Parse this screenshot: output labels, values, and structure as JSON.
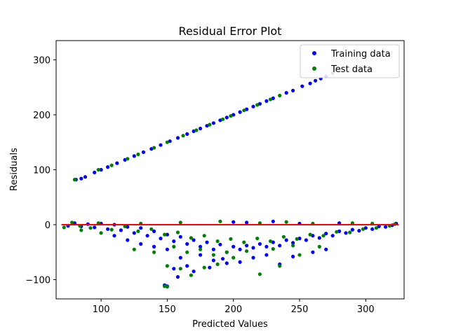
{
  "chart_data": {
    "type": "scatter",
    "title": "Residual Error Plot",
    "xlabel": "Predicted Values",
    "ylabel": "Residuals",
    "xlim": [
      66,
      329
    ],
    "ylim": [
      -135,
      335
    ],
    "xticks": [
      {
        "value": 100,
        "label": "100"
      },
      {
        "value": 150,
        "label": "150"
      },
      {
        "value": 200,
        "label": "200"
      },
      {
        "value": 250,
        "label": "250"
      },
      {
        "value": 300,
        "label": "300"
      }
    ],
    "yticks": [
      {
        "value": -100,
        "label": "−100"
      },
      {
        "value": 0,
        "label": "0"
      },
      {
        "value": 100,
        "label": "100"
      },
      {
        "value": 200,
        "label": "200"
      },
      {
        "value": 300,
        "label": "300"
      }
    ],
    "legend_position": "top-right",
    "grid": false,
    "reference_line": {
      "y": 0,
      "x_range": [
        70,
        325
      ],
      "color": "#ff0000"
    },
    "series": [
      {
        "name": "Training data",
        "color": "#0000ff",
        "points": [
          [
            81,
            82
          ],
          [
            85,
            84
          ],
          [
            88,
            87
          ],
          [
            95,
            95
          ],
          [
            100,
            100
          ],
          [
            105,
            105
          ],
          [
            112,
            112
          ],
          [
            118,
            118
          ],
          [
            125,
            125
          ],
          [
            132,
            132
          ],
          [
            138,
            138
          ],
          [
            145,
            145
          ],
          [
            152,
            152
          ],
          [
            158,
            158
          ],
          [
            165,
            165
          ],
          [
            170,
            170
          ],
          [
            175,
            175
          ],
          [
            180,
            180
          ],
          [
            185,
            185
          ],
          [
            190,
            190
          ],
          [
            195,
            195
          ],
          [
            200,
            200
          ],
          [
            205,
            205
          ],
          [
            210,
            210
          ],
          [
            215,
            215
          ],
          [
            220,
            220
          ],
          [
            225,
            225
          ],
          [
            230,
            230
          ],
          [
            240,
            240
          ],
          [
            245,
            244
          ],
          [
            252,
            252
          ],
          [
            258,
            257
          ],
          [
            262,
            262
          ],
          [
            266,
            266
          ],
          [
            270,
            270
          ],
          [
            75,
            -2
          ],
          [
            80,
            3
          ],
          [
            85,
            -3
          ],
          [
            90,
            1
          ],
          [
            95,
            -5
          ],
          [
            100,
            2
          ],
          [
            105,
            -8
          ],
          [
            110,
            0
          ],
          [
            115,
            -10
          ],
          [
            120,
            -4
          ],
          [
            125,
            -15
          ],
          [
            130,
            -6
          ],
          [
            135,
            -20
          ],
          [
            140,
            -12
          ],
          [
            145,
            -25
          ],
          [
            150,
            -18
          ],
          [
            155,
            -30
          ],
          [
            160,
            -22
          ],
          [
            165,
            -35
          ],
          [
            170,
            -28
          ],
          [
            175,
            -40
          ],
          [
            180,
            -32
          ],
          [
            185,
            -45
          ],
          [
            190,
            -36
          ],
          [
            195,
            -50
          ],
          [
            200,
            -40
          ],
          [
            205,
            -45
          ],
          [
            210,
            -38
          ],
          [
            215,
            -42
          ],
          [
            220,
            -35
          ],
          [
            225,
            -40
          ],
          [
            230,
            -32
          ],
          [
            235,
            -38
          ],
          [
            240,
            -28
          ],
          [
            245,
            -33
          ],
          [
            250,
            -25
          ],
          [
            255,
            -28
          ],
          [
            260,
            -20
          ],
          [
            265,
            -24
          ],
          [
            270,
            -16
          ],
          [
            275,
            -20
          ],
          [
            280,
            -12
          ],
          [
            285,
            -15
          ],
          [
            290,
            -9
          ],
          [
            295,
            -11
          ],
          [
            300,
            -6
          ],
          [
            305,
            -8
          ],
          [
            310,
            -3
          ],
          [
            315,
            -4
          ],
          [
            320,
            -1
          ],
          [
            323,
            2
          ],
          [
            160,
            -60
          ],
          [
            165,
            -75
          ],
          [
            175,
            -55
          ],
          [
            185,
            -65
          ],
          [
            195,
            -70
          ],
          [
            205,
            -68
          ],
          [
            215,
            -60
          ],
          [
            225,
            -55
          ],
          [
            235,
            -72
          ],
          [
            155,
            -80
          ],
          [
            158,
            -95
          ],
          [
            150,
            -112
          ],
          [
            148,
            -110
          ],
          [
            170,
            -85
          ],
          [
            182,
            -78
          ],
          [
            192,
            -62
          ],
          [
            245,
            -58
          ],
          [
            260,
            -50
          ],
          [
            270,
            -45
          ],
          [
            110,
            -20
          ],
          [
            120,
            -28
          ],
          [
            130,
            -35
          ],
          [
            140,
            -40
          ],
          [
            150,
            -45
          ],
          [
            200,
            5
          ],
          [
            210,
            4
          ],
          [
            230,
            6
          ],
          [
            250,
            2
          ],
          [
            280,
            3
          ]
        ]
      },
      {
        "name": "Test data",
        "color": "#008000",
        "points": [
          [
            80,
            82
          ],
          [
            98,
            100
          ],
          [
            108,
            108
          ],
          [
            120,
            120
          ],
          [
            128,
            128
          ],
          [
            140,
            140
          ],
          [
            150,
            150
          ],
          [
            162,
            162
          ],
          [
            172,
            172
          ],
          [
            182,
            182
          ],
          [
            192,
            192
          ],
          [
            198,
            198
          ],
          [
            208,
            208
          ],
          [
            218,
            218
          ],
          [
            228,
            228
          ],
          [
            235,
            235
          ],
          [
            275,
            276
          ],
          [
            72,
            -5
          ],
          [
            78,
            4
          ],
          [
            84,
            -2
          ],
          [
            92,
            -6
          ],
          [
            98,
            3
          ],
          [
            108,
            -9
          ],
          [
            118,
            -3
          ],
          [
            128,
            -12
          ],
          [
            138,
            -8
          ],
          [
            148,
            -18
          ],
          [
            158,
            -14
          ],
          [
            168,
            -24
          ],
          [
            178,
            -20
          ],
          [
            188,
            -30
          ],
          [
            198,
            -26
          ],
          [
            208,
            -32
          ],
          [
            218,
            -25
          ],
          [
            228,
            -30
          ],
          [
            238,
            -22
          ],
          [
            248,
            -26
          ],
          [
            258,
            -18
          ],
          [
            268,
            -20
          ],
          [
            278,
            -13
          ],
          [
            288,
            -14
          ],
          [
            298,
            -8
          ],
          [
            308,
            -6
          ],
          [
            318,
            -2
          ],
          [
            322,
            1
          ],
          [
            85,
            -10
          ],
          [
            100,
            -15
          ],
          [
            125,
            -45
          ],
          [
            140,
            -50
          ],
          [
            150,
            -75
          ],
          [
            160,
            -80
          ],
          [
            168,
            -92
          ],
          [
            178,
            -78
          ],
          [
            188,
            -72
          ],
          [
            200,
            -60
          ],
          [
            220,
            -90
          ],
          [
            235,
            -75
          ],
          [
            250,
            -55
          ],
          [
            265,
            -40
          ],
          [
            155,
            -40
          ],
          [
            165,
            -50
          ],
          [
            175,
            -45
          ],
          [
            185,
            -55
          ],
          [
            195,
            -50
          ],
          [
            210,
            -48
          ],
          [
            230,
            -44
          ],
          [
            245,
            -38
          ],
          [
            150,
            -113
          ],
          [
            148,
            -112
          ],
          [
            130,
            2
          ],
          [
            160,
            4
          ],
          [
            190,
            6
          ],
          [
            220,
            3
          ],
          [
            240,
            5
          ],
          [
            260,
            2
          ],
          [
            290,
            3
          ],
          [
            305,
            2
          ]
        ]
      }
    ]
  }
}
